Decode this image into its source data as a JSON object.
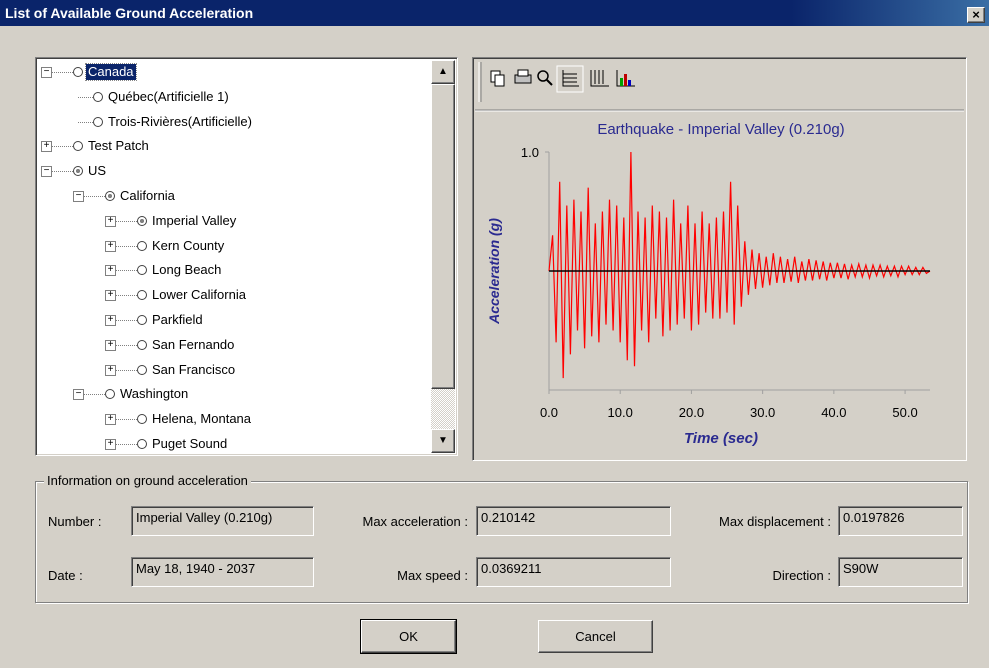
{
  "window": {
    "title": "List of Available Ground Acceleration"
  },
  "tree": {
    "items": [
      "Canada",
      "Québec(Artificielle 1)",
      "Trois-Rivières(Artificielle)",
      "Test Patch",
      "US",
      "California",
      "Imperial Valley",
      "Kern County",
      "Long Beach",
      "Lower California",
      "Parkfield",
      "San Fernando",
      "San Francisco",
      "Washington",
      "Helena, Montana",
      "Puget Sound"
    ]
  },
  "chart_data": {
    "type": "line",
    "title": "Earthquake - Imperial Valley (0.210g)",
    "x_label": "Time (sec)",
    "y_label": "Acceleration (g)",
    "color": "#ff0000",
    "x": [
      0,
      0.5,
      1,
      1.5,
      2,
      2.5,
      3,
      3.5,
      4,
      4.5,
      5,
      5.5,
      6,
      6.5,
      7,
      7.5,
      8,
      8.5,
      9,
      9.5,
      10,
      10.5,
      11,
      11.5,
      12,
      12.5,
      13,
      13.5,
      14,
      14.5,
      15,
      15.5,
      16,
      16.5,
      17,
      17.5,
      18,
      18.5,
      19,
      19.5,
      20,
      20.5,
      21,
      21.5,
      22,
      22.5,
      23,
      23.5,
      24,
      24.5,
      25,
      25.5,
      26,
      26.5,
      27,
      27.5,
      28,
      28.5,
      29,
      29.5,
      30,
      30.5,
      31,
      31.5,
      32,
      32.5,
      33,
      33.5,
      34,
      34.5,
      35,
      35.5,
      36,
      36.5,
      37,
      37.5,
      38,
      38.5,
      39,
      39.5,
      40,
      40.5,
      41,
      41.5,
      42,
      42.5,
      43,
      43.5,
      44,
      44.5,
      45,
      45.5,
      46,
      46.5,
      47,
      47.5,
      48,
      48.5,
      49,
      49.5,
      50,
      50.5,
      51,
      51.5,
      52,
      52.5,
      53,
      53.5
    ],
    "values": [
      0,
      0.3,
      -0.6,
      0.75,
      -0.9,
      0.55,
      -0.7,
      0.6,
      -0.5,
      0.5,
      -0.65,
      0.7,
      -0.55,
      0.4,
      -0.6,
      0.5,
      -0.45,
      0.6,
      -0.5,
      0.55,
      -0.6,
      0.45,
      -0.75,
      1.0,
      -0.8,
      0.5,
      -0.5,
      0.45,
      -0.6,
      0.55,
      -0.4,
      0.5,
      -0.55,
      0.45,
      -0.5,
      0.6,
      -0.45,
      0.4,
      -0.4,
      0.55,
      -0.5,
      0.4,
      -0.45,
      0.5,
      -0.35,
      0.4,
      -0.4,
      0.45,
      -0.4,
      0.5,
      -0.35,
      0.75,
      -0.45,
      0.55,
      -0.3,
      0.25,
      -0.2,
      0.18,
      -0.15,
      0.15,
      -0.14,
      0.12,
      -0.12,
      0.15,
      -0.1,
      0.12,
      -0.1,
      0.1,
      -0.09,
      0.12,
      -0.1,
      0.08,
      -0.08,
      0.1,
      -0.08,
      0.09,
      -0.07,
      0.08,
      -0.08,
      0.07,
      -0.06,
      0.07,
      -0.06,
      0.06,
      -0.07,
      0.05,
      -0.05,
      0.06,
      -0.05,
      0.05,
      -0.06,
      0.05,
      -0.04,
      0.05,
      -0.05,
      0.04,
      -0.04,
      0.04,
      -0.05,
      0.04,
      -0.03,
      0.04,
      -0.03,
      0.03,
      -0.03,
      0.03,
      -0.02,
      0
    ],
    "xlim": [
      0,
      53.5
    ],
    "ylim": [
      -1,
      1
    ],
    "xticks": [
      {
        "value": 0,
        "label": "0.0"
      },
      {
        "value": 10,
        "label": "10.0"
      },
      {
        "value": 20,
        "label": "20.0"
      },
      {
        "value": 30,
        "label": "30.0"
      },
      {
        "value": 40,
        "label": "40.0"
      },
      {
        "value": 50,
        "label": "50.0"
      }
    ],
    "yticks": [
      {
        "value": 1,
        "label": "1.0"
      }
    ]
  },
  "info": {
    "legend": "Information on ground acceleration",
    "fields": [
      {
        "label": "Number :",
        "value": "Imperial Valley (0.210g)"
      },
      {
        "label": "Date :",
        "value": "May 18, 1940 - 2037"
      },
      {
        "label": "Max acceleration :",
        "value": "0.210142"
      },
      {
        "label": "Max speed :",
        "value": "0.0369211"
      },
      {
        "label": "Max displacement :",
        "value": "0.0197826"
      },
      {
        "label": "Direction :",
        "value": "S90W"
      }
    ]
  },
  "buttons": [
    "OK",
    "Cancel"
  ]
}
